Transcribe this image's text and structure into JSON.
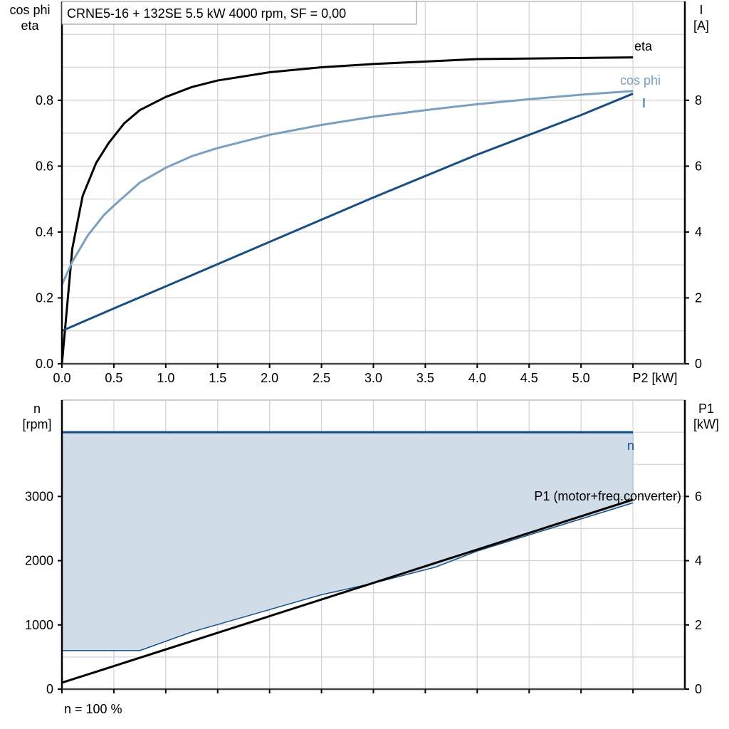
{
  "chart_data": [
    {
      "type": "line",
      "title": "CRNE5-16 + 132SE   5.5 kW   4000 rpm, SF = 0,00",
      "xlabel": "P2 [kW]",
      "ylabel_left": [
        "cos phi",
        "eta"
      ],
      "ylabel_right": [
        "I",
        "[A]"
      ],
      "xlim": [
        0,
        6
      ],
      "ylim_left": [
        0,
        1.1
      ],
      "ylim_right": [
        0,
        11
      ],
      "x_ticks": [
        "0.0",
        "0.5",
        "1.0",
        "1.5",
        "2.0",
        "2.5",
        "3.0",
        "3.5",
        "4.0",
        "4.5",
        "5.0"
      ],
      "x_tick_values": [
        0,
        0.5,
        1,
        1.5,
        2,
        2.5,
        3,
        3.5,
        4,
        4.5,
        5
      ],
      "y_left_ticks": [
        "0.0",
        "0.2",
        "0.4",
        "0.6",
        "0.8"
      ],
      "y_left_tick_values": [
        0,
        0.2,
        0.4,
        0.6,
        0.8
      ],
      "y_right_ticks": [
        "0",
        "2",
        "4",
        "6",
        "8"
      ],
      "y_right_tick_values": [
        0,
        2,
        4,
        6,
        8
      ],
      "grid": true,
      "series": [
        {
          "name": "eta",
          "axis": "left",
          "color": "#000000",
          "x": [
            0,
            0.1,
            0.2,
            0.33,
            0.45,
            0.6,
            0.75,
            1.0,
            1.25,
            1.5,
            2.0,
            2.5,
            3.0,
            4.0,
            5.5
          ],
          "y": [
            0,
            0.35,
            0.51,
            0.61,
            0.67,
            0.73,
            0.77,
            0.81,
            0.84,
            0.86,
            0.885,
            0.9,
            0.91,
            0.925,
            0.93
          ]
        },
        {
          "name": "cos phi",
          "axis": "left",
          "color": "#7a9fc0",
          "x": [
            0,
            0.1,
            0.25,
            0.4,
            0.5,
            0.75,
            1.0,
            1.25,
            1.5,
            2.0,
            2.5,
            3.0,
            3.5,
            4.0,
            4.5,
            5.0,
            5.5
          ],
          "y": [
            0.24,
            0.31,
            0.39,
            0.45,
            0.48,
            0.55,
            0.595,
            0.63,
            0.655,
            0.695,
            0.725,
            0.75,
            0.77,
            0.788,
            0.803,
            0.817,
            0.828
          ]
        },
        {
          "name": "I",
          "axis": "right",
          "color": "#1a4f82",
          "x": [
            0,
            0.5,
            1.0,
            2.0,
            3.0,
            4.0,
            5.0,
            5.5
          ],
          "y": [
            1.0,
            1.68,
            2.35,
            3.7,
            5.05,
            6.35,
            7.55,
            8.2
          ]
        }
      ]
    },
    {
      "type": "area",
      "ylabel_left": [
        "n",
        "[rpm]"
      ],
      "ylabel_right": [
        "P1",
        "[kW]"
      ],
      "xlim": [
        0,
        6
      ],
      "ylim_left": [
        0,
        4500
      ],
      "ylim_right": [
        0,
        9
      ],
      "y_left_ticks": [
        "0",
        "1000",
        "2000",
        "3000"
      ],
      "y_left_tick_values": [
        0,
        1000,
        2000,
        3000
      ],
      "y_right_ticks": [
        "0",
        "2",
        "4",
        "6"
      ],
      "y_right_tick_values": [
        0,
        2,
        4,
        6
      ],
      "grid": true,
      "footnote": "n = 100 %",
      "series": [
        {
          "name": "n",
          "axis": "left",
          "color": "#0e4a8a",
          "x": [
            0,
            5.5
          ],
          "y": [
            4000,
            4000
          ]
        },
        {
          "name": "P1 (motor+freq.converter)",
          "axis": "right",
          "color": "#000000",
          "x": [
            0,
            5.5
          ],
          "y": [
            0.2,
            5.9
          ]
        }
      ],
      "operating_range": {
        "fill": "#d0dce8",
        "edge_color": "#1a4f82",
        "upper": {
          "x": [
            0,
            5.5
          ],
          "y": [
            4000,
            4000
          ]
        },
        "lower": {
          "x": [
            0,
            0.75,
            1.25,
            2.5,
            3.0,
            3.6,
            4.0,
            5.5
          ],
          "y": [
            600,
            600,
            890,
            1470,
            1650,
            1900,
            2150,
            2900
          ]
        }
      }
    }
  ]
}
